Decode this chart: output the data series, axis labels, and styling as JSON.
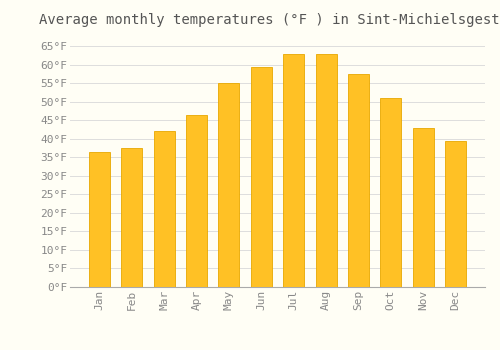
{
  "title": "Average monthly temperatures (°F ) in Sint-Michielsgestel",
  "months": [
    "Jan",
    "Feb",
    "Mar",
    "Apr",
    "May",
    "Jun",
    "Jul",
    "Aug",
    "Sep",
    "Oct",
    "Nov",
    "Dec"
  ],
  "values": [
    36.5,
    37.5,
    42.0,
    46.5,
    55.0,
    59.5,
    63.0,
    63.0,
    57.5,
    51.0,
    43.0,
    39.5
  ],
  "bar_color_face": "#FFC125",
  "bar_color_edge": "#E8A800",
  "ylim": [
    0,
    68
  ],
  "yticks": [
    0,
    5,
    10,
    15,
    20,
    25,
    30,
    35,
    40,
    45,
    50,
    55,
    60,
    65
  ],
  "background_color": "#FFFEF5",
  "grid_color": "#DDDDDD",
  "title_fontsize": 10,
  "tick_fontsize": 8,
  "tick_label_color": "#888888",
  "title_color": "#555555"
}
